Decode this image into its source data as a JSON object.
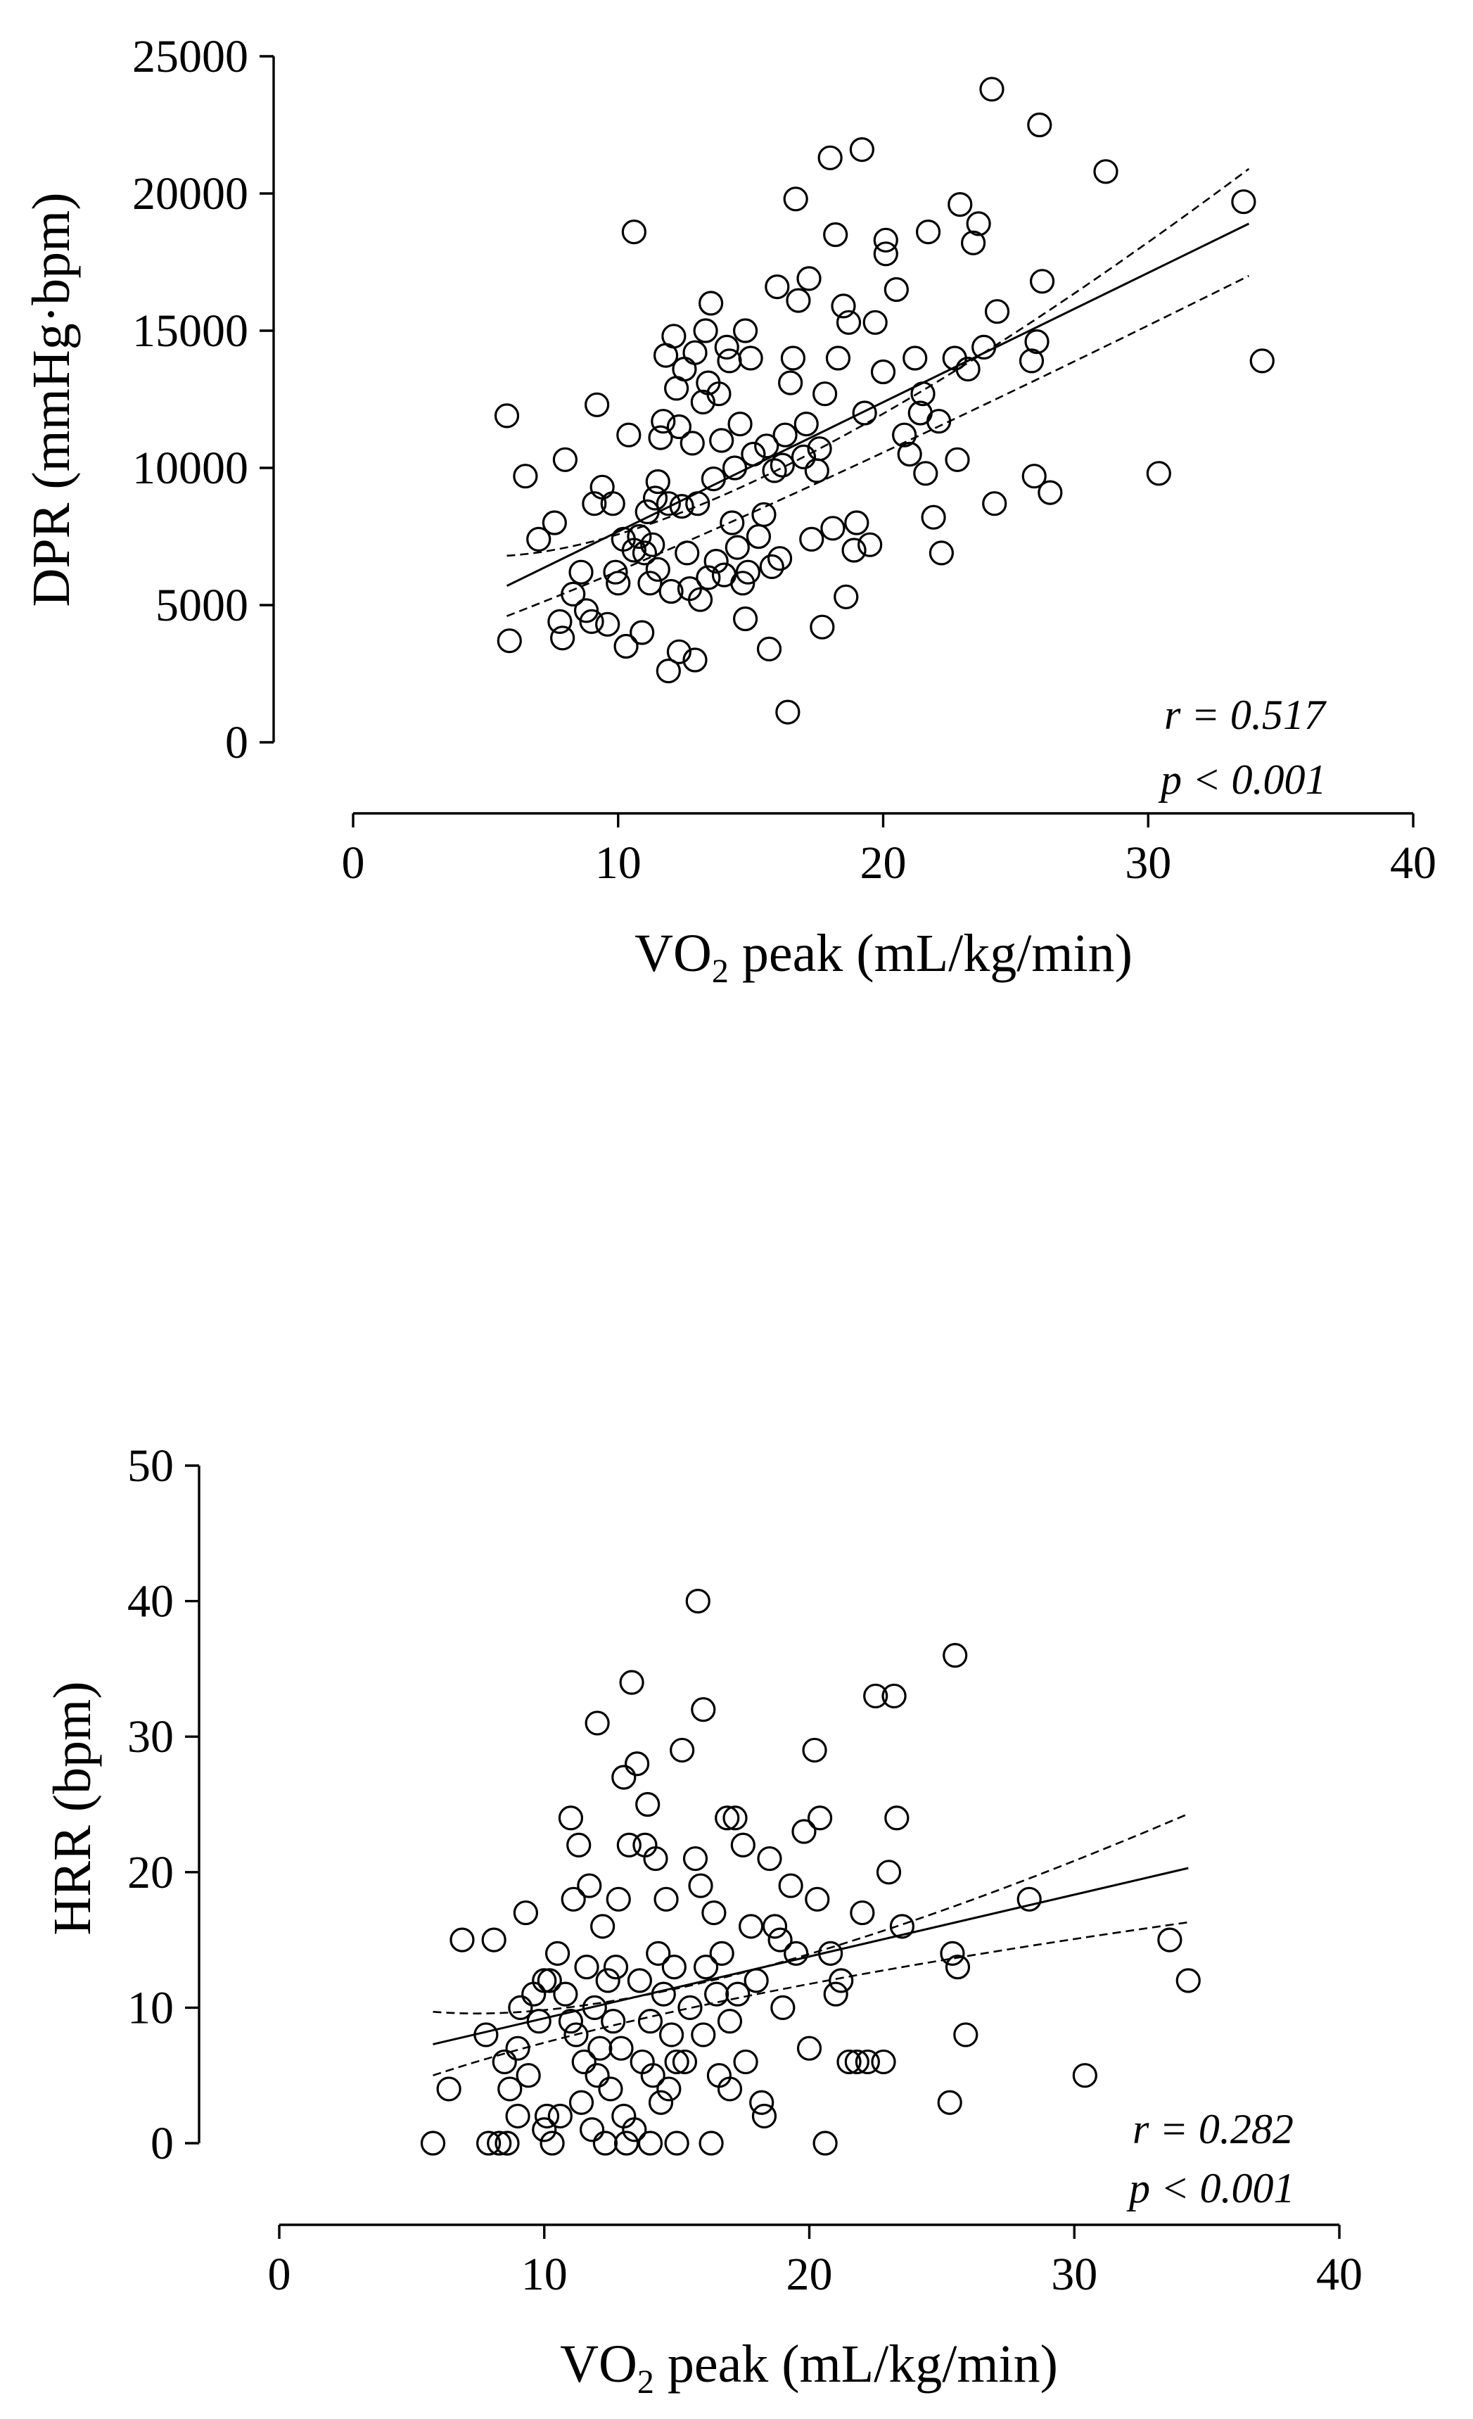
{
  "chart_data": [
    {
      "type": "scatter",
      "id": "dpr",
      "xlabel_main": "VO",
      "xlabel_sub": "2",
      "xlabel_rest": " peak (mL/kg/min)",
      "ylabel": "DPR (mmHg·bpm)",
      "xlim": [
        0,
        40
      ],
      "ylim": [
        0,
        25000
      ],
      "xticks": [
        0,
        10,
        20,
        30,
        40
      ],
      "yticks": [
        0,
        5000,
        10000,
        15000,
        20000,
        25000
      ],
      "stats": {
        "r": "r = 0.517",
        "p": "p < 0.001"
      },
      "fit": {
        "x0": 5.8,
        "y0": 5700,
        "x1": 33.8,
        "y1": 18900
      },
      "ci_upper": [
        [
          5.8,
          6800
        ],
        [
          15,
          10600
        ],
        [
          33.8,
          20900
        ]
      ],
      "ci_lower": [
        [
          5.8,
          4600
        ],
        [
          15,
          9400
        ],
        [
          33.8,
          17000
        ]
      ],
      "points": [
        [
          5.8,
          11900
        ],
        [
          6.5,
          9700
        ],
        [
          5.9,
          3700
        ],
        [
          7.0,
          7400
        ],
        [
          7.6,
          8000
        ],
        [
          7.8,
          4400
        ],
        [
          7.9,
          3800
        ],
        [
          8.0,
          10300
        ],
        [
          8.3,
          5400
        ],
        [
          8.6,
          6200
        ],
        [
          8.8,
          4800
        ],
        [
          9.0,
          4400
        ],
        [
          9.2,
          12300
        ],
        [
          9.1,
          8700
        ],
        [
          9.4,
          9300
        ],
        [
          9.6,
          4300
        ],
        [
          9.8,
          8700
        ],
        [
          9.9,
          6200
        ],
        [
          10.2,
          7400
        ],
        [
          10.0,
          5800
        ],
        [
          10.3,
          3500
        ],
        [
          10.4,
          11200
        ],
        [
          10.6,
          18600
        ],
        [
          10.6,
          7000
        ],
        [
          10.8,
          7500
        ],
        [
          10.9,
          4000
        ],
        [
          11.0,
          6900
        ],
        [
          11.1,
          8400
        ],
        [
          11.2,
          5800
        ],
        [
          11.3,
          7200
        ],
        [
          11.4,
          8900
        ],
        [
          11.5,
          6300
        ],
        [
          11.6,
          11100
        ],
        [
          11.7,
          11700
        ],
        [
          11.8,
          14100
        ],
        [
          11.9,
          8700
        ],
        [
          11.9,
          2600
        ],
        [
          12.0,
          5500
        ],
        [
          12.1,
          14800
        ],
        [
          12.2,
          12900
        ],
        [
          12.3,
          11500
        ],
        [
          12.3,
          3300
        ],
        [
          12.4,
          8600
        ],
        [
          12.5,
          13600
        ],
        [
          12.6,
          6900
        ],
        [
          12.7,
          5600
        ],
        [
          12.8,
          10900
        ],
        [
          12.9,
          14200
        ],
        [
          13.0,
          8700
        ],
        [
          13.1,
          5200
        ],
        [
          13.2,
          12400
        ],
        [
          13.3,
          15000
        ],
        [
          13.4,
          13100
        ],
        [
          13.5,
          16000
        ],
        [
          13.6,
          9600
        ],
        [
          13.7,
          6600
        ],
        [
          13.8,
          12700
        ],
        [
          13.9,
          11000
        ],
        [
          14.0,
          6100
        ],
        [
          14.1,
          14400
        ],
        [
          14.2,
          13900
        ],
        [
          14.3,
          8000
        ],
        [
          14.4,
          10000
        ],
        [
          14.5,
          7100
        ],
        [
          14.6,
          11600
        ],
        [
          14.7,
          5800
        ],
        [
          14.8,
          15000
        ],
        [
          14.9,
          6200
        ],
        [
          15.0,
          14000
        ],
        [
          15.1,
          10500
        ],
        [
          15.3,
          7500
        ],
        [
          15.5,
          8300
        ],
        [
          15.7,
          3400
        ],
        [
          15.8,
          6400
        ],
        [
          15.9,
          9900
        ],
        [
          16.0,
          16600
        ],
        [
          16.2,
          10100
        ],
        [
          16.3,
          11200
        ],
        [
          16.4,
          1100
        ],
        [
          16.5,
          13100
        ],
        [
          16.6,
          14000
        ],
        [
          16.7,
          19800
        ],
        [
          16.8,
          16100
        ],
        [
          17.0,
          10400
        ],
        [
          17.1,
          11600
        ],
        [
          17.2,
          16900
        ],
        [
          17.3,
          7400
        ],
        [
          17.5,
          9900
        ],
        [
          17.6,
          10700
        ],
        [
          17.7,
          4200
        ],
        [
          17.8,
          12700
        ],
        [
          18.0,
          21300
        ],
        [
          18.1,
          7800
        ],
        [
          18.2,
          18500
        ],
        [
          18.3,
          14000
        ],
        [
          18.5,
          15900
        ],
        [
          18.7,
          15300
        ],
        [
          18.9,
          7000
        ],
        [
          19.0,
          8000
        ],
        [
          19.2,
          21600
        ],
        [
          19.3,
          12000
        ],
        [
          19.5,
          7200
        ],
        [
          19.7,
          15300
        ],
        [
          20.0,
          13500
        ],
        [
          20.1,
          17800
        ],
        [
          20.1,
          18300
        ],
        [
          20.5,
          16500
        ],
        [
          20.8,
          11200
        ],
        [
          21.0,
          10500
        ],
        [
          21.2,
          14000
        ],
        [
          21.4,
          12000
        ],
        [
          21.5,
          12700
        ],
        [
          21.6,
          9800
        ],
        [
          21.7,
          18600
        ],
        [
          21.9,
          8200
        ],
        [
          22.1,
          11700
        ],
        [
          22.2,
          6900
        ],
        [
          22.7,
          14000
        ],
        [
          22.8,
          10300
        ],
        [
          22.9,
          19600
        ],
        [
          23.2,
          13600
        ],
        [
          23.4,
          18200
        ],
        [
          23.6,
          18900
        ],
        [
          23.8,
          14400
        ],
        [
          24.1,
          23800
        ],
        [
          24.2,
          8700
        ],
        [
          24.3,
          15700
        ],
        [
          25.6,
          13900
        ],
        [
          25.7,
          9700
        ],
        [
          25.8,
          14600
        ],
        [
          25.9,
          22500
        ],
        [
          26.0,
          16800
        ],
        [
          26.3,
          9100
        ],
        [
          28.4,
          20800
        ],
        [
          30.4,
          9800
        ],
        [
          33.6,
          19700
        ],
        [
          34.3,
          13900
        ],
        [
          12.9,
          3000
        ],
        [
          14.8,
          4500
        ],
        [
          16.1,
          6700
        ],
        [
          18.6,
          5300
        ],
        [
          11.5,
          9500
        ],
        [
          13.4,
          6000
        ],
        [
          15.6,
          10800
        ]
      ]
    },
    {
      "type": "scatter",
      "id": "hrr",
      "xlabel_main": "VO",
      "xlabel_sub": "2",
      "xlabel_rest": " peak (mL/kg/min)",
      "ylabel": "HRR (bpm)",
      "xlim": [
        0,
        40
      ],
      "ylim": [
        0,
        50
      ],
      "xticks": [
        0,
        10,
        20,
        30,
        40
      ],
      "yticks": [
        0,
        10,
        20,
        30,
        40,
        50
      ],
      "stats": {
        "r": "r = 0.282",
        "p": "p < 0.001"
      },
      "fit": {
        "x0": 5.8,
        "y0": 7.3,
        "x1": 34.3,
        "y1": 20.3
      },
      "ci_upper": [
        [
          5.8,
          9.7
        ],
        [
          15,
          12.6
        ],
        [
          34.3,
          24.3
        ]
      ],
      "ci_lower": [
        [
          5.8,
          5.0
        ],
        [
          15,
          10.8
        ],
        [
          34.3,
          16.3
        ]
      ],
      "points": [
        [
          5.8,
          0
        ],
        [
          6.4,
          4
        ],
        [
          6.9,
          15
        ],
        [
          7.8,
          8
        ],
        [
          7.9,
          0
        ],
        [
          8.1,
          15
        ],
        [
          8.3,
          0
        ],
        [
          8.5,
          6
        ],
        [
          8.6,
          0
        ],
        [
          8.7,
          4
        ],
        [
          9.0,
          7
        ],
        [
          9.1,
          10
        ],
        [
          9.3,
          17
        ],
        [
          9.4,
          5
        ],
        [
          9.6,
          11
        ],
        [
          9.8,
          9
        ],
        [
          10.0,
          1
        ],
        [
          10.1,
          2
        ],
        [
          10.2,
          12
        ],
        [
          10.3,
          0
        ],
        [
          10.5,
          14
        ],
        [
          10.6,
          2
        ],
        [
          10.8,
          11
        ],
        [
          11.0,
          24
        ],
        [
          11.1,
          18
        ],
        [
          11.2,
          8
        ],
        [
          11.3,
          22
        ],
        [
          11.4,
          3
        ],
        [
          11.5,
          6
        ],
        [
          11.6,
          13
        ],
        [
          11.7,
          19
        ],
        [
          11.8,
          1
        ],
        [
          11.9,
          10
        ],
        [
          12.0,
          31
        ],
        [
          12.1,
          7
        ],
        [
          12.2,
          16
        ],
        [
          12.3,
          0
        ],
        [
          12.4,
          12
        ],
        [
          12.5,
          4
        ],
        [
          12.6,
          9
        ],
        [
          12.7,
          13
        ],
        [
          12.8,
          18
        ],
        [
          12.9,
          7
        ],
        [
          13.0,
          27
        ],
        [
          13.1,
          0
        ],
        [
          13.2,
          22
        ],
        [
          13.3,
          34
        ],
        [
          13.4,
          1
        ],
        [
          13.5,
          28
        ],
        [
          13.6,
          12
        ],
        [
          13.7,
          6
        ],
        [
          13.8,
          22
        ],
        [
          13.9,
          25
        ],
        [
          14.0,
          9
        ],
        [
          14.1,
          5
        ],
        [
          14.2,
          21
        ],
        [
          14.3,
          14
        ],
        [
          14.4,
          3
        ],
        [
          14.5,
          11
        ],
        [
          14.6,
          18
        ],
        [
          14.7,
          4
        ],
        [
          14.8,
          8
        ],
        [
          14.9,
          13
        ],
        [
          15.0,
          0
        ],
        [
          15.2,
          29
        ],
        [
          15.3,
          6
        ],
        [
          15.5,
          10
        ],
        [
          15.7,
          21
        ],
        [
          15.8,
          40
        ],
        [
          15.9,
          19
        ],
        [
          16.0,
          32
        ],
        [
          16.1,
          13
        ],
        [
          16.3,
          0
        ],
        [
          16.4,
          17
        ],
        [
          16.6,
          5
        ],
        [
          16.7,
          14
        ],
        [
          16.9,
          24
        ],
        [
          17.0,
          9
        ],
        [
          17.2,
          24
        ],
        [
          17.3,
          11
        ],
        [
          17.5,
          22
        ],
        [
          17.6,
          6
        ],
        [
          17.8,
          16
        ],
        [
          18.0,
          12
        ],
        [
          18.2,
          3
        ],
        [
          18.3,
          2
        ],
        [
          18.5,
          21
        ],
        [
          18.7,
          16
        ],
        [
          18.9,
          15
        ],
        [
          19.0,
          10
        ],
        [
          19.3,
          19
        ],
        [
          19.5,
          14
        ],
        [
          19.8,
          23
        ],
        [
          20.0,
          7
        ],
        [
          20.2,
          29
        ],
        [
          20.3,
          18
        ],
        [
          20.4,
          24
        ],
        [
          20.6,
          0
        ],
        [
          20.8,
          14
        ],
        [
          21.0,
          11
        ],
        [
          21.2,
          12
        ],
        [
          21.5,
          6
        ],
        [
          21.8,
          6
        ],
        [
          22.0,
          17
        ],
        [
          22.2,
          6
        ],
        [
          22.5,
          33
        ],
        [
          22.8,
          6
        ],
        [
          23.0,
          20
        ],
        [
          23.2,
          33
        ],
        [
          23.3,
          24
        ],
        [
          23.5,
          16
        ],
        [
          25.3,
          3
        ],
        [
          25.4,
          14
        ],
        [
          25.5,
          36
        ],
        [
          25.6,
          13
        ],
        [
          25.9,
          8
        ],
        [
          28.3,
          18
        ],
        [
          30.4,
          5
        ],
        [
          33.6,
          15
        ],
        [
          34.3,
          12
        ],
        [
          12.0,
          5
        ],
        [
          13.0,
          2
        ],
        [
          14.0,
          0
        ],
        [
          15.0,
          6
        ],
        [
          16.0,
          8
        ],
        [
          17.0,
          4
        ],
        [
          11.0,
          9
        ],
        [
          10.0,
          12
        ],
        [
          9.0,
          2
        ],
        [
          16.5,
          11
        ]
      ]
    }
  ]
}
